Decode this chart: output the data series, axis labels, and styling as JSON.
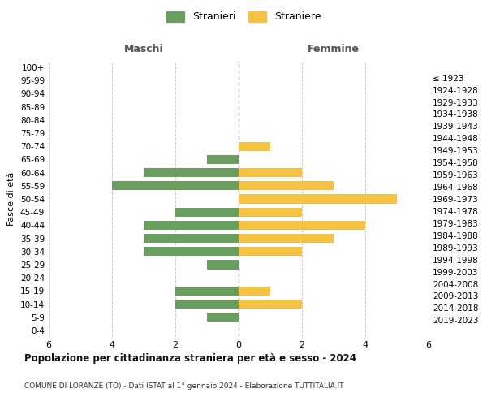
{
  "age_groups": [
    "0-4",
    "5-9",
    "10-14",
    "15-19",
    "20-24",
    "25-29",
    "30-34",
    "35-39",
    "40-44",
    "45-49",
    "50-54",
    "55-59",
    "60-64",
    "65-69",
    "70-74",
    "75-79",
    "80-84",
    "85-89",
    "90-94",
    "95-99",
    "100+"
  ],
  "birth_years": [
    "2019-2023",
    "2014-2018",
    "2009-2013",
    "2004-2008",
    "1999-2003",
    "1994-1998",
    "1989-1993",
    "1984-1988",
    "1979-1983",
    "1974-1978",
    "1969-1973",
    "1964-1968",
    "1959-1963",
    "1954-1958",
    "1949-1953",
    "1944-1948",
    "1939-1943",
    "1934-1938",
    "1929-1933",
    "1924-1928",
    "≤ 1923"
  ],
  "maschi": [
    0,
    1,
    2,
    2,
    0,
    1,
    3,
    3,
    3,
    2,
    0,
    4,
    3,
    1,
    0,
    0,
    0,
    0,
    0,
    0,
    0
  ],
  "femmine": [
    0,
    0,
    2,
    1,
    0,
    0,
    2,
    3,
    4,
    2,
    5,
    3,
    2,
    0,
    1,
    0,
    0,
    0,
    0,
    0,
    0
  ],
  "maschi_color": "#6a9e5e",
  "femmine_color": "#f5c242",
  "title": "Popolazione per cittadinanza straniera per età e sesso - 2024",
  "subtitle": "COMUNE DI LORANZÈ (TO) - Dati ISTAT al 1° gennaio 2024 - Elaborazione TUTTITALIA.IT",
  "legend_maschi": "Stranieri",
  "legend_femmine": "Straniere",
  "header_left": "Maschi",
  "header_right": "Femmine",
  "ylabel_left": "Fasce di età",
  "xlim": 6,
  "background_color": "#ffffff",
  "grid_color": "#cccccc"
}
